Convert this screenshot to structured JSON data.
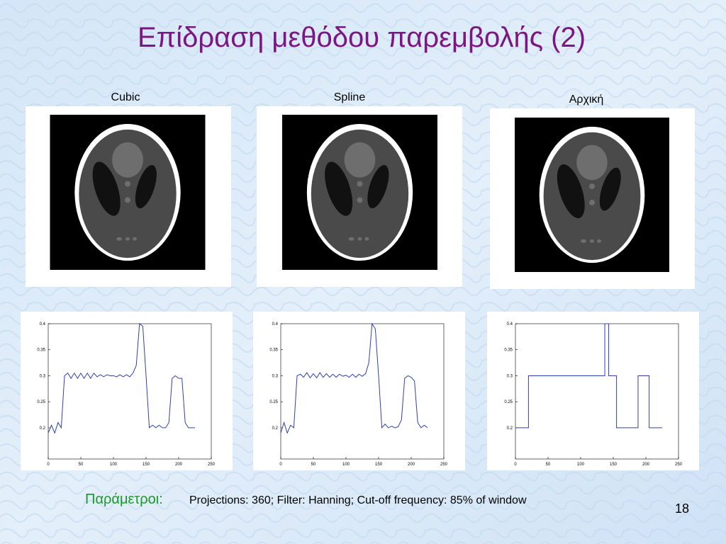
{
  "title": "Επίδραση μεθόδου παρεμβολής (2)",
  "image_labels": [
    "Cubic",
    "Spline",
    "Αρχική"
  ],
  "chart_data": [
    {
      "type": "line",
      "color": "#3040b0",
      "x": [
        0,
        5,
        10,
        15,
        20,
        25,
        30,
        35,
        40,
        45,
        50,
        55,
        60,
        65,
        70,
        75,
        80,
        85,
        90,
        95,
        100,
        105,
        110,
        115,
        120,
        125,
        130,
        135,
        140,
        145,
        150,
        155,
        160,
        165,
        170,
        175,
        180,
        185,
        190,
        195,
        200,
        205,
        210,
        215,
        220,
        225
      ],
      "values": [
        0.19,
        0.205,
        0.19,
        0.21,
        0.2,
        0.3,
        0.305,
        0.295,
        0.305,
        0.295,
        0.305,
        0.295,
        0.305,
        0.295,
        0.305,
        0.298,
        0.302,
        0.298,
        0.302,
        0.3,
        0.3,
        0.298,
        0.302,
        0.298,
        0.302,
        0.298,
        0.305,
        0.32,
        0.4,
        0.395,
        0.3,
        0.2,
        0.205,
        0.2,
        0.205,
        0.2,
        0.2,
        0.21,
        0.295,
        0.3,
        0.295,
        0.295,
        0.21,
        0.2,
        0.2,
        0.2
      ],
      "xlim": [
        0,
        250
      ],
      "ylim": [
        0.14,
        0.4
      ],
      "xticks": [
        0,
        50,
        100,
        150,
        200,
        250
      ],
      "yticks": [
        0.2,
        0.25,
        0.3,
        0.35,
        0.4
      ]
    },
    {
      "type": "line",
      "color": "#3040b0",
      "x": [
        0,
        5,
        10,
        15,
        20,
        25,
        30,
        35,
        40,
        45,
        50,
        55,
        60,
        65,
        70,
        75,
        80,
        85,
        90,
        95,
        100,
        105,
        110,
        115,
        120,
        125,
        130,
        135,
        140,
        145,
        150,
        155,
        160,
        165,
        170,
        175,
        180,
        185,
        190,
        195,
        200,
        205,
        210,
        215,
        220,
        225
      ],
      "values": [
        0.19,
        0.21,
        0.19,
        0.205,
        0.2,
        0.3,
        0.303,
        0.297,
        0.306,
        0.296,
        0.304,
        0.296,
        0.306,
        0.297,
        0.304,
        0.297,
        0.303,
        0.297,
        0.303,
        0.299,
        0.301,
        0.297,
        0.303,
        0.297,
        0.303,
        0.299,
        0.304,
        0.325,
        0.4,
        0.39,
        0.3,
        0.2,
        0.207,
        0.2,
        0.203,
        0.2,
        0.202,
        0.215,
        0.295,
        0.3,
        0.297,
        0.29,
        0.21,
        0.2,
        0.205,
        0.2
      ],
      "xlim": [
        0,
        250
      ],
      "ylim": [
        0.14,
        0.4
      ],
      "xticks": [
        0,
        50,
        100,
        150,
        200,
        250
      ],
      "yticks": [
        0.2,
        0.25,
        0.3,
        0.35,
        0.4
      ]
    },
    {
      "type": "line",
      "color": "#3040b0",
      "x": [
        0,
        20,
        20,
        137,
        137,
        143,
        143,
        155,
        155,
        188,
        188,
        205,
        205,
        225
      ],
      "values": [
        0.2,
        0.2,
        0.3,
        0.3,
        0.4,
        0.4,
        0.3,
        0.3,
        0.2,
        0.2,
        0.3,
        0.3,
        0.2,
        0.2
      ],
      "xlim": [
        0,
        250
      ],
      "ylim": [
        0.14,
        0.4
      ],
      "xticks": [
        0,
        50,
        100,
        150,
        200,
        250
      ],
      "yticks": [
        0.2,
        0.25,
        0.3,
        0.35,
        0.4
      ]
    }
  ],
  "footer": {
    "label": "Παράμετροι:",
    "text": "Projections: 360; Filter: Hanning;  Cut-off frequency: 85% of window"
  },
  "page_number": "18"
}
